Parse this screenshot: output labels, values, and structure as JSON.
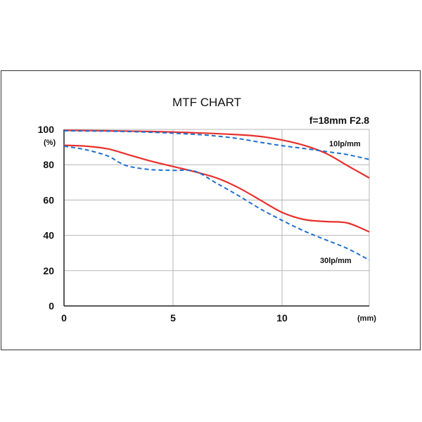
{
  "chart_data": {
    "type": "line",
    "title": "MTF CHART",
    "subtitle": "f=18mm F2.8",
    "ylabel_unit": "(%)",
    "xlabel_unit": "(mm)",
    "xlim": [
      0,
      14
    ],
    "ylim": [
      0,
      100
    ],
    "x_ticks": [
      "0",
      "5",
      "10"
    ],
    "y_ticks": [
      "0",
      "20",
      "40",
      "60",
      "80",
      "100"
    ],
    "annotations": [
      "10lp/mm",
      "30lp/mm"
    ],
    "grid": true,
    "colors": {
      "solid": "#e8302c",
      "dashed": "#1f6fd0"
    },
    "series": [
      {
        "style": "solid",
        "x": [
          0,
          2,
          4,
          6,
          8,
          9,
          10,
          11,
          12,
          13,
          14
        ],
        "y": [
          99.5,
          99.2,
          98.8,
          98.1,
          97.0,
          96.0,
          94.0,
          91.0,
          86.5,
          79.5,
          72.5
        ]
      },
      {
        "style": "dashed",
        "x": [
          0,
          2,
          4,
          6,
          7,
          8,
          9,
          10,
          11,
          12,
          13,
          14
        ],
        "y": [
          99.2,
          99.0,
          98.4,
          97.2,
          96.2,
          94.8,
          92.7,
          90.8,
          89.2,
          87.5,
          85.7,
          83.0
        ]
      },
      {
        "style": "solid",
        "x": [
          0,
          1,
          2,
          3,
          4,
          5,
          6,
          7,
          8,
          9,
          10,
          11,
          12,
          13,
          14
        ],
        "y": [
          91,
          90.5,
          89,
          85.5,
          82,
          79,
          76,
          72.5,
          67,
          60,
          53,
          49,
          47.8,
          47,
          42
        ]
      },
      {
        "style": "dashed",
        "x": [
          0,
          1,
          2,
          2.5,
          3,
          4,
          5,
          6,
          7,
          8,
          9,
          10,
          11,
          12,
          13,
          14
        ],
        "y": [
          90.5,
          88.5,
          85,
          81.5,
          79,
          77.2,
          76.8,
          76.3,
          69.5,
          62.5,
          55,
          48.5,
          42.5,
          37.5,
          32.5,
          26
        ]
      }
    ]
  }
}
